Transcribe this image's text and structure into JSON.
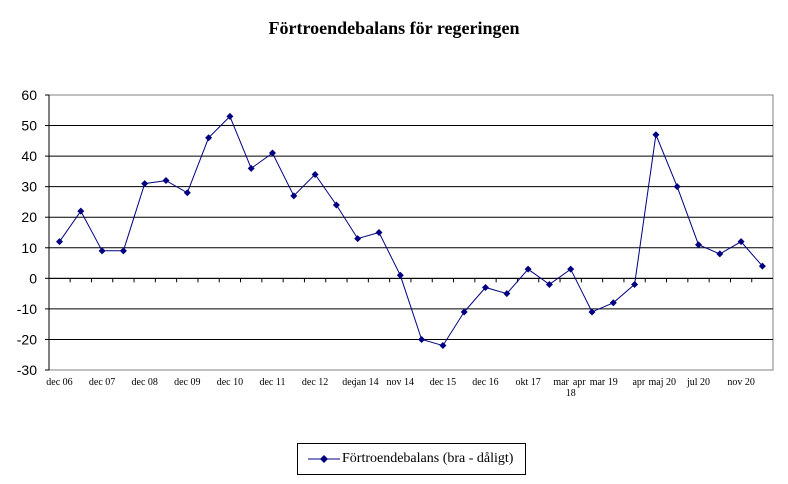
{
  "chart_data": {
    "type": "line",
    "title": "Förtroendebalans för regeringen",
    "xlabel": "",
    "ylabel": "",
    "ylim": [
      -30,
      60
    ],
    "yticks": [
      60,
      50,
      40,
      30,
      20,
      10,
      0,
      -10,
      -20,
      -30
    ],
    "grid": "horizontal",
    "legend_position": "bottom",
    "color": "#000080",
    "series": [
      {
        "name": "Förtroendebalans (bra - dåligt)",
        "values": [
          12,
          22,
          9,
          9,
          31,
          32,
          28,
          46,
          53,
          36,
          41,
          27,
          34,
          24,
          13,
          15,
          1,
          -20,
          -22,
          -11,
          -3,
          -5,
          3,
          -2,
          3,
          -11,
          -8,
          -2,
          47,
          30,
          11,
          8,
          12,
          4
        ]
      }
    ],
    "x_tick_labels": [
      {
        "label": "dec 06",
        "index": 0
      },
      {
        "label": "dec 07",
        "index": 2
      },
      {
        "label": "dec 08",
        "index": 4
      },
      {
        "label": "dec 09",
        "index": 6
      },
      {
        "label": "dec 10",
        "index": 8
      },
      {
        "label": "dec 11",
        "index": 10
      },
      {
        "label": "dec 12",
        "index": 12
      },
      {
        "label": "dec",
        "index": 13.6
      },
      {
        "label": "jan 14",
        "index": 14.4
      },
      {
        "label": "nov 14",
        "index": 16
      },
      {
        "label": "dec 15",
        "index": 18
      },
      {
        "label": "dec 16",
        "index": 20
      },
      {
        "label": "okt 17",
        "index": 22
      },
      {
        "label": "mar",
        "index": 23.55
      },
      {
        "label": "apr",
        "index": 24.4
      },
      {
        "label": "18",
        "index": 24.0,
        "line": 2
      },
      {
        "label": "mar 19",
        "index": 25.55
      },
      {
        "label": "apr",
        "index": 27.2
      },
      {
        "label": "maj 20",
        "index": 28.3
      },
      {
        "label": "jul 20",
        "index": 30
      },
      {
        "label": "nov 20",
        "index": 32
      }
    ]
  }
}
